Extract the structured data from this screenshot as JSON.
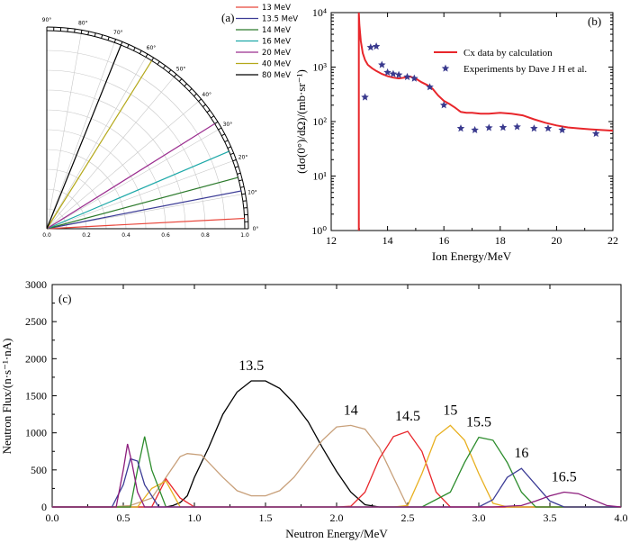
{
  "chart_data": [
    {
      "panel": "(a)",
      "type": "polar",
      "angle_ticks": [
        "0°",
        "10°",
        "20°",
        "30°",
        "40°",
        "50°",
        "60°",
        "70°",
        "80°",
        "90°"
      ],
      "radial_ticks": [
        "0.0",
        "0.2",
        "0.4",
        "0.6",
        "0.8",
        "1.0"
      ],
      "rlim": [
        0,
        1.0
      ],
      "grid": true,
      "legend_position": "top-right",
      "series": [
        {
          "name": "13 MeV",
          "color": "#e8463b",
          "angle_deg": 3
        },
        {
          "name": "13.5 MeV",
          "color": "#3c3c96",
          "angle_deg": 11
        },
        {
          "name": "14 MeV",
          "color": "#2c7a2c",
          "angle_deg": 15
        },
        {
          "name": "16 MeV",
          "color": "#1ca8a8",
          "angle_deg": 23
        },
        {
          "name": "20 MeV",
          "color": "#9b2d8f",
          "angle_deg": 32
        },
        {
          "name": "40 MeV",
          "color": "#b4a81a",
          "angle_deg": 58
        },
        {
          "name": "80 MeV",
          "color": "#000000",
          "angle_deg": 68
        }
      ]
    },
    {
      "panel": "(b)",
      "type": "line+scatter",
      "xlabel": "Ion Energy/MeV",
      "ylabel": "(dσ(0°)/dΩ)/(mb·sr⁻¹)",
      "xlim": [
        12,
        22
      ],
      "xticks": [
        "12",
        "14",
        "16",
        "18",
        "20",
        "22"
      ],
      "yscale": "log",
      "ylim": [
        1,
        10000
      ],
      "yticks": [
        "10⁰",
        "10¹",
        "10²",
        "10³",
        "10⁴"
      ],
      "legend_position": "top-right",
      "series": [
        {
          "name": "Cx data by calculation",
          "type": "line",
          "color": "#e8262b",
          "x": [
            12.98,
            12.98,
            13.0,
            13.05,
            13.12,
            13.2,
            13.3,
            13.45,
            13.6,
            13.8,
            14.0,
            14.2,
            14.4,
            14.6,
            14.8,
            15.0,
            15.2,
            15.4,
            15.6,
            15.8,
            16.0,
            16.2,
            16.4,
            16.6,
            16.8,
            17.0,
            17.3,
            17.6,
            18.0,
            18.4,
            18.8,
            19.2,
            19.6,
            20.0,
            20.4,
            20.8,
            21.2,
            21.6,
            22.0
          ],
          "y": [
            1,
            10000,
            6000,
            3000,
            1800,
            1350,
            1100,
            950,
            850,
            750,
            680,
            640,
            620,
            640,
            670,
            620,
            530,
            470,
            400,
            300,
            240,
            210,
            180,
            150,
            145,
            145,
            140,
            140,
            145,
            140,
            130,
            110,
            95,
            85,
            78,
            75,
            72,
            70,
            68
          ]
        },
        {
          "name": "Experiments by Dave J H et al.",
          "type": "scatter",
          "color": "#3a3a8e",
          "x": [
            13.2,
            13.4,
            13.6,
            13.8,
            14.0,
            14.2,
            14.4,
            14.7,
            14.95,
            15.5,
            16.0,
            16.6,
            17.1,
            17.6,
            18.1,
            18.6,
            19.2,
            19.7,
            20.2,
            21.4
          ],
          "y": [
            280,
            2300,
            2400,
            1100,
            800,
            750,
            720,
            660,
            620,
            430,
            200,
            75,
            70,
            77,
            78,
            80,
            75,
            75,
            70,
            60
          ]
        }
      ]
    },
    {
      "panel": "(c)",
      "type": "line",
      "xlabel": "Neutron Energy/MeV",
      "ylabel": "Neutron Flux/(n·s⁻¹·nA)",
      "xlim": [
        0,
        4.0
      ],
      "ylim": [
        0,
        3000
      ],
      "xticks": [
        "0.0",
        "0.5",
        "1.0",
        "1.5",
        "2.0",
        "2.5",
        "3.0",
        "3.5",
        "4.0"
      ],
      "yticks": [
        "0",
        "500",
        "1000",
        "1500",
        "2000",
        "2500",
        "3000"
      ],
      "series": [
        {
          "name": "13.5",
          "color": "#000000",
          "x": [
            0.0,
            0.8,
            0.85,
            0.9,
            0.95,
            1.0,
            1.1,
            1.2,
            1.3,
            1.4,
            1.5,
            1.6,
            1.7,
            1.8,
            1.9,
            2.0,
            2.1,
            2.2,
            2.3,
            4.0
          ],
          "y": [
            0,
            0,
            20,
            60,
            150,
            400,
            800,
            1250,
            1550,
            1700,
            1700,
            1600,
            1400,
            1150,
            800,
            480,
            200,
            30,
            0,
            0
          ]
        },
        {
          "name": "14",
          "color": "#c8a07a",
          "x": [
            0.0,
            0.4,
            0.55,
            0.7,
            0.8,
            0.9,
            0.95,
            1.05,
            1.1,
            1.2,
            1.3,
            1.4,
            1.5,
            1.6,
            1.7,
            1.8,
            1.9,
            2.0,
            2.1,
            2.2,
            2.3,
            2.4,
            2.5,
            4.0
          ],
          "y": [
            0,
            0,
            20,
            120,
            400,
            680,
            720,
            700,
            600,
            400,
            220,
            150,
            150,
            220,
            400,
            650,
            900,
            1080,
            1100,
            1050,
            800,
            400,
            0,
            0
          ]
        },
        {
          "name": "14.5",
          "color": "#e8262b",
          "x": [
            0.0,
            0.7,
            0.8,
            0.9,
            1.0,
            2.0,
            2.1,
            2.2,
            2.3,
            2.4,
            2.5,
            2.6,
            2.7,
            2.8,
            4.0
          ],
          "y": [
            0,
            0,
            380,
            120,
            0,
            0,
            10,
            200,
            650,
            950,
            1020,
            750,
            200,
            0,
            0
          ]
        },
        {
          "name": "15",
          "color": "#e8b020",
          "x": [
            0.0,
            0.6,
            0.7,
            0.8,
            0.9,
            2.4,
            2.5,
            2.6,
            2.7,
            2.8,
            2.9,
            3.0,
            3.1,
            3.2,
            4.0
          ],
          "y": [
            0,
            0,
            250,
            350,
            0,
            0,
            20,
            450,
            950,
            1100,
            900,
            450,
            50,
            0,
            0
          ]
        },
        {
          "name": "15.5",
          "color": "#2c8c2c",
          "x": [
            0.0,
            0.55,
            0.6,
            0.65,
            0.7,
            0.8,
            2.6,
            2.8,
            2.9,
            3.0,
            3.1,
            3.2,
            3.3,
            3.4,
            4.0
          ],
          "y": [
            0,
            0,
            500,
            950,
            500,
            0,
            0,
            200,
            600,
            940,
            900,
            600,
            200,
            0,
            0
          ]
        },
        {
          "name": "16",
          "color": "#3c3c96",
          "x": [
            0.0,
            0.42,
            0.5,
            0.55,
            0.6,
            0.65,
            0.75,
            3.0,
            3.1,
            3.2,
            3.3,
            3.4,
            3.5,
            3.6,
            4.0
          ],
          "y": [
            0,
            0,
            300,
            650,
            620,
            300,
            0,
            0,
            100,
            400,
            520,
            300,
            80,
            0,
            0
          ]
        },
        {
          "name": "16.5",
          "color": "#8c1c7c",
          "x": [
            0.0,
            0.45,
            0.5,
            0.53,
            0.56,
            0.6,
            0.65,
            3.1,
            3.3,
            3.4,
            3.5,
            3.6,
            3.7,
            3.8,
            3.9,
            4.0
          ],
          "y": [
            0,
            0,
            500,
            850,
            600,
            200,
            0,
            0,
            20,
            80,
            150,
            200,
            180,
            100,
            20,
            0
          ]
        }
      ]
    }
  ]
}
